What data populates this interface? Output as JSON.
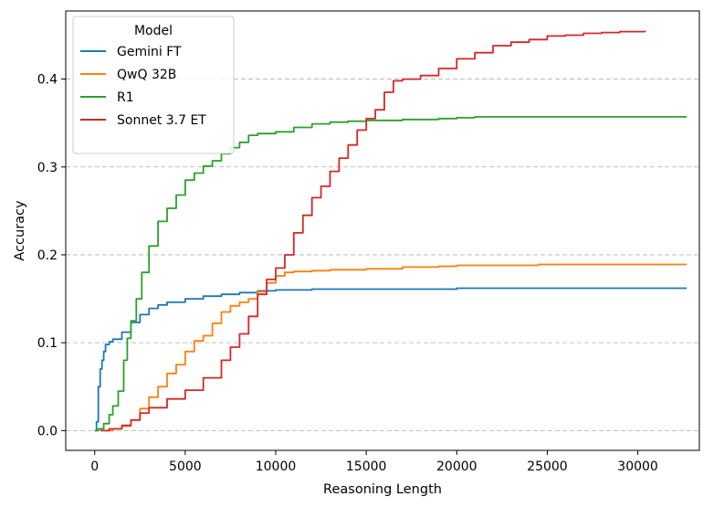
{
  "chart_data": {
    "type": "line",
    "xlabel": "Reasoning Length",
    "ylabel": "Accuracy",
    "xlim": [
      -1600,
      33400
    ],
    "ylim": [
      -0.0225,
      0.4775
    ],
    "xticks": [
      0,
      5000,
      10000,
      15000,
      20000,
      25000,
      30000
    ],
    "xtick_labels": [
      "0",
      "5000",
      "10000",
      "15000",
      "20000",
      "25000",
      "30000"
    ],
    "yticks": [
      0.0,
      0.1,
      0.2,
      0.3,
      0.4
    ],
    "ytick_labels": [
      "0.0",
      "0.1",
      "0.2",
      "0.3",
      "0.4"
    ],
    "grid": "horizontal dashed",
    "legend": {
      "title": "Model",
      "placement": "top-left"
    },
    "series": [
      {
        "name": "Gemini FT",
        "color": "#1f77b4",
        "points": [
          [
            0,
            0
          ],
          [
            100,
            0.01
          ],
          [
            200,
            0.05
          ],
          [
            300,
            0.07
          ],
          [
            400,
            0.08
          ],
          [
            500,
            0.09
          ],
          [
            600,
            0.098
          ],
          [
            800,
            0.101
          ],
          [
            1000,
            0.104
          ],
          [
            1500,
            0.112
          ],
          [
            2000,
            0.123
          ],
          [
            2500,
            0.132
          ],
          [
            3000,
            0.139
          ],
          [
            3500,
            0.143
          ],
          [
            4000,
            0.146
          ],
          [
            5000,
            0.15
          ],
          [
            6000,
            0.153
          ],
          [
            7000,
            0.155
          ],
          [
            8000,
            0.157
          ],
          [
            9000,
            0.159
          ],
          [
            10000,
            0.16
          ],
          [
            12000,
            0.161
          ],
          [
            15000,
            0.161
          ],
          [
            20000,
            0.162
          ],
          [
            25000,
            0.162
          ],
          [
            32700,
            0.162
          ]
        ]
      },
      {
        "name": "QwQ 32B",
        "color": "#ff7f0e",
        "points": [
          [
            600,
            0
          ],
          [
            1000,
            0.002
          ],
          [
            1500,
            0.005
          ],
          [
            2000,
            0.012
          ],
          [
            2500,
            0.025
          ],
          [
            3000,
            0.038
          ],
          [
            3500,
            0.05
          ],
          [
            4000,
            0.065
          ],
          [
            4500,
            0.075
          ],
          [
            5000,
            0.09
          ],
          [
            5500,
            0.102
          ],
          [
            6000,
            0.108
          ],
          [
            6500,
            0.122
          ],
          [
            7000,
            0.135
          ],
          [
            7500,
            0.142
          ],
          [
            8000,
            0.146
          ],
          [
            8500,
            0.15
          ],
          [
            9000,
            0.158
          ],
          [
            9500,
            0.168
          ],
          [
            10000,
            0.176
          ],
          [
            10500,
            0.18
          ],
          [
            11000,
            0.181
          ],
          [
            12000,
            0.182
          ],
          [
            13000,
            0.183
          ],
          [
            15000,
            0.184
          ],
          [
            17000,
            0.186
          ],
          [
            19000,
            0.187
          ],
          [
            20000,
            0.188
          ],
          [
            24000,
            0.188
          ],
          [
            24500,
            0.189
          ],
          [
            32700,
            0.189
          ]
        ]
      },
      {
        "name": "R1",
        "color": "#2ca02c",
        "points": [
          [
            0,
            0
          ],
          [
            200,
            0.002
          ],
          [
            500,
            0.008
          ],
          [
            800,
            0.018
          ],
          [
            1000,
            0.028
          ],
          [
            1300,
            0.045
          ],
          [
            1600,
            0.08
          ],
          [
            1800,
            0.105
          ],
          [
            2000,
            0.125
          ],
          [
            2300,
            0.15
          ],
          [
            2600,
            0.18
          ],
          [
            3000,
            0.21
          ],
          [
            3500,
            0.238
          ],
          [
            4000,
            0.253
          ],
          [
            4500,
            0.268
          ],
          [
            5000,
            0.285
          ],
          [
            5500,
            0.293
          ],
          [
            6000,
            0.301
          ],
          [
            6500,
            0.307
          ],
          [
            7000,
            0.315
          ],
          [
            7500,
            0.322
          ],
          [
            8000,
            0.328
          ],
          [
            8500,
            0.336
          ],
          [
            9000,
            0.338
          ],
          [
            10000,
            0.34
          ],
          [
            11000,
            0.345
          ],
          [
            12000,
            0.349
          ],
          [
            13000,
            0.351
          ],
          [
            14000,
            0.352
          ],
          [
            15000,
            0.353
          ],
          [
            17000,
            0.354
          ],
          [
            19000,
            0.355
          ],
          [
            20000,
            0.356
          ],
          [
            21000,
            0.357
          ],
          [
            25000,
            0.357
          ],
          [
            32700,
            0.357
          ]
        ]
      },
      {
        "name": "Sonnet 3.7 ET",
        "color": "#d62728",
        "points": [
          [
            300,
            0
          ],
          [
            800,
            0.002
          ],
          [
            1500,
            0.006
          ],
          [
            2000,
            0.012
          ],
          [
            2500,
            0.02
          ],
          [
            3000,
            0.026
          ],
          [
            4000,
            0.036
          ],
          [
            5000,
            0.046
          ],
          [
            6000,
            0.06
          ],
          [
            7000,
            0.08
          ],
          [
            7500,
            0.095
          ],
          [
            8000,
            0.11
          ],
          [
            8500,
            0.13
          ],
          [
            9000,
            0.155
          ],
          [
            9500,
            0.172
          ],
          [
            10000,
            0.185
          ],
          [
            10500,
            0.2
          ],
          [
            11000,
            0.225
          ],
          [
            11500,
            0.245
          ],
          [
            12000,
            0.265
          ],
          [
            12500,
            0.278
          ],
          [
            13000,
            0.295
          ],
          [
            13500,
            0.31
          ],
          [
            14000,
            0.325
          ],
          [
            14500,
            0.342
          ],
          [
            15000,
            0.355
          ],
          [
            15500,
            0.365
          ],
          [
            16000,
            0.385
          ],
          [
            16500,
            0.398
          ],
          [
            17000,
            0.4
          ],
          [
            18000,
            0.404
          ],
          [
            19000,
            0.412
          ],
          [
            20000,
            0.423
          ],
          [
            21000,
            0.43
          ],
          [
            22000,
            0.438
          ],
          [
            23000,
            0.442
          ],
          [
            24000,
            0.445
          ],
          [
            25000,
            0.449
          ],
          [
            26000,
            0.45
          ],
          [
            27000,
            0.452
          ],
          [
            28000,
            0.453
          ],
          [
            29000,
            0.454
          ],
          [
            30400,
            0.455
          ]
        ]
      }
    ]
  }
}
